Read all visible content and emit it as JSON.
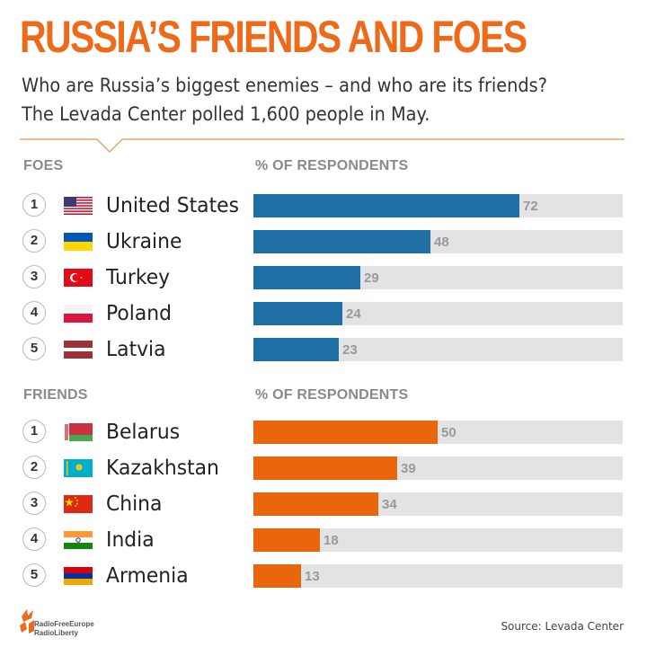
{
  "header": {
    "title": "RUSSIA’S FRIENDS AND FOES",
    "subtitle_line1": "Who are Russia’s biggest enemies – and who are its friends?",
    "subtitle_line2": "The Levada Center polled 1,600 people in May."
  },
  "colors": {
    "title": "#ec6a1a",
    "foes_bar": "#1f6ea4",
    "friends_bar": "#e9660d",
    "track": "#e3e3e5"
  },
  "chart_data": [
    {
      "type": "bar",
      "orientation": "horizontal",
      "group_label": "FOES",
      "value_label": "% OF RESPONDENTS",
      "xlim": [
        0,
        100
      ],
      "ranks": [
        "1",
        "2",
        "3",
        "4",
        "5"
      ],
      "categories": [
        "United States",
        "Ukraine",
        "Turkey",
        "Poland",
        "Latvia"
      ],
      "values": [
        72,
        48,
        29,
        24,
        23
      ],
      "flags": [
        "us-flag-icon",
        "ukraine-flag-icon",
        "turkey-flag-icon",
        "poland-flag-icon",
        "latvia-flag-icon"
      ]
    },
    {
      "type": "bar",
      "orientation": "horizontal",
      "group_label": "FRIENDS",
      "value_label": "% OF RESPONDENTS",
      "xlim": [
        0,
        100
      ],
      "ranks": [
        "1",
        "2",
        "3",
        "4",
        "5"
      ],
      "categories": [
        "Belarus",
        "Kazakhstan",
        "China",
        "India",
        "Armenia"
      ],
      "values": [
        50,
        39,
        34,
        18,
        13
      ],
      "flags": [
        "belarus-flag-icon",
        "kazakhstan-flag-icon",
        "china-flag-icon",
        "india-flag-icon",
        "armenia-flag-icon"
      ]
    }
  ],
  "footer": {
    "logo_line1": "RadioFreeEurope",
    "logo_line2": "RadioLiberty",
    "source": "Source: Levada Center"
  }
}
